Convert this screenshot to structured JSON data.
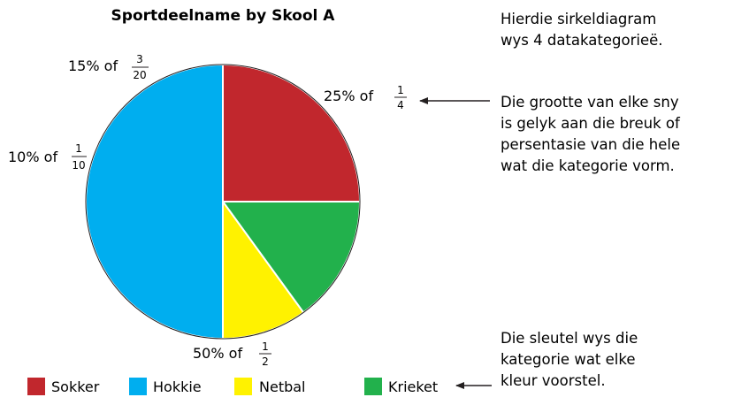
{
  "chart_data": {
    "type": "pie",
    "title": "Sportdeelname by Skool A",
    "slices": [
      {
        "name": "Sokker",
        "value": 25,
        "percent_label": "25% of",
        "frac_num": "1",
        "frac_den": "4",
        "color": "#c1272d"
      },
      {
        "name": "Krieket",
        "value": 15,
        "percent_label": "15% of",
        "frac_num": "3",
        "frac_den": "20",
        "color": "#22b14c"
      },
      {
        "name": "Netbal",
        "value": 10,
        "percent_label": "10% of",
        "frac_num": "1",
        "frac_den": "10",
        "color": "#fff200"
      },
      {
        "name": "Hokkie",
        "value": 50,
        "percent_label": "50% of",
        "frac_num": "1",
        "frac_den": "2",
        "color": "#00aeef"
      }
    ],
    "legend": {
      "placement": "bottom",
      "items": [
        {
          "label": "Sokker",
          "color": "#c1272d"
        },
        {
          "label": "Hokkie",
          "color": "#00aeef"
        },
        {
          "label": "Netbal",
          "color": "#fff200"
        },
        {
          "label": "Krieket",
          "color": "#22b14c"
        }
      ]
    }
  },
  "annotations": {
    "note1": [
      "Hierdie sirkeldiagram",
      "wys 4 datakategorieë."
    ],
    "note2": [
      "Die grootte van elke sny",
      "is gelyk aan die breuk of",
      "persentasie van die hele",
      "wat die kategorie vorm."
    ],
    "note3": [
      "Die sleutel wys die",
      "kategorie wat elke",
      "kleur voorstel."
    ]
  }
}
